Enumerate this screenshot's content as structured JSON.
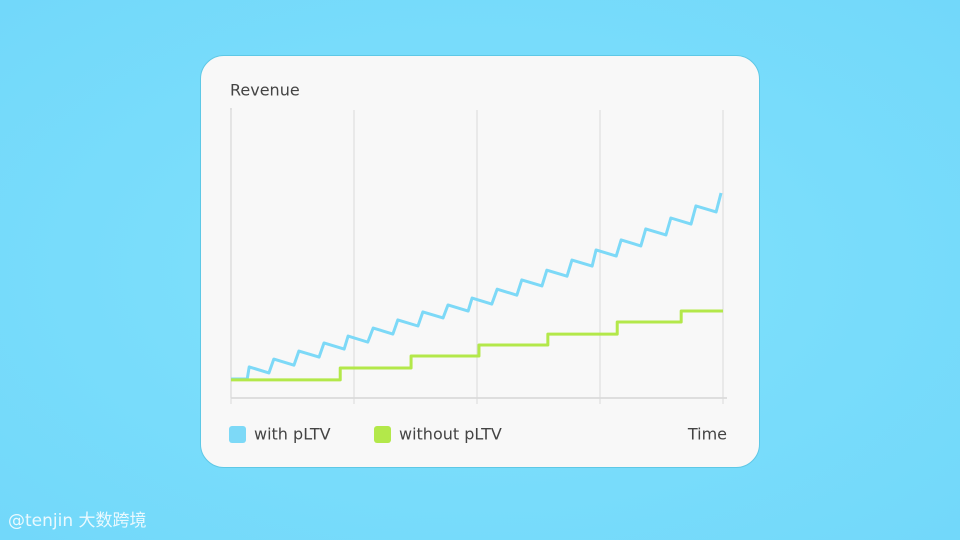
{
  "chart_data": {
    "type": "line",
    "ylabel": "Revenue",
    "xlabel": "Time",
    "xlim": [
      0,
      100
    ],
    "ylim": [
      0,
      100
    ],
    "xticks": [
      0,
      25,
      50,
      75,
      100
    ],
    "grid": true,
    "series": [
      {
        "name": "with pLTV",
        "color": "#7dd9f7",
        "x": [
          0,
          3.3,
          3.7,
          7.7,
          8.7,
          12.8,
          13.8,
          17.9,
          18.9,
          23.0,
          23.8,
          27.8,
          28.9,
          32.9,
          33.9,
          38.0,
          39.0,
          43.1,
          44.1,
          48.2,
          49.0,
          53.0,
          54.1,
          58.1,
          59.1,
          63.2,
          64.2,
          68.3,
          69.3,
          73.4,
          74.2,
          78.3,
          79.3,
          83.3,
          84.3,
          88.4,
          89.4,
          93.5,
          94.5,
          98.6,
          99.6
        ],
        "values": [
          6.6,
          6.6,
          10.8,
          8.7,
          13.5,
          11.4,
          16.3,
          14.2,
          19.1,
          17.0,
          21.5,
          19.4,
          24.3,
          22.2,
          27.1,
          25.0,
          29.9,
          27.8,
          32.3,
          30.2,
          34.7,
          32.6,
          37.8,
          35.7,
          41.0,
          38.9,
          44.4,
          42.3,
          47.9,
          45.8,
          51.4,
          49.3,
          54.9,
          52.8,
          58.7,
          56.6,
          62.5,
          60.4,
          66.7,
          64.6,
          71.2
        ]
      },
      {
        "name": "without pLTV",
        "color": "#b3e84a",
        "x": [
          0,
          22.2,
          22.2,
          36.6,
          36.6,
          50.4,
          50.4,
          64.4,
          64.4,
          78.5,
          78.5,
          91.5,
          91.5,
          100
        ],
        "values": [
          6.3,
          6.3,
          10.4,
          10.4,
          14.6,
          14.6,
          18.4,
          18.4,
          22.2,
          22.2,
          26.4,
          26.4,
          30.2,
          30.2
        ]
      }
    ],
    "watermark": "@tenjin 大数跨境"
  }
}
